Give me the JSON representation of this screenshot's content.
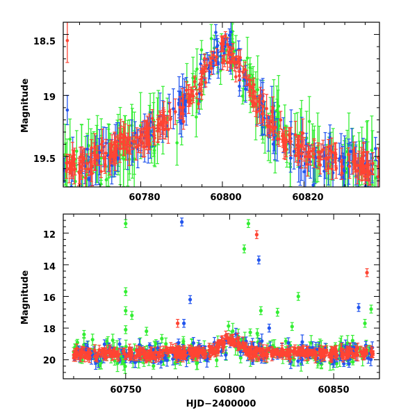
{
  "colors": {
    "green": "#33ee33",
    "blue": "#2255ee",
    "red": "#ff4433",
    "axis": "#000000",
    "model_line": "#000000"
  },
  "chart_data": [
    {
      "type": "scatter",
      "title": "",
      "xlabel": "",
      "ylabel": "Magnitude",
      "xlim": [
        60761,
        60838.5
      ],
      "ylim": [
        19.75,
        18.4
      ],
      "y_inverted": true,
      "x_ticks": [
        60780,
        60800,
        60820
      ],
      "x_tick_labels": [
        "60780",
        "60800",
        "60820"
      ],
      "y_ticks": [
        18.5,
        19,
        19.5
      ],
      "y_tick_labels": [
        "18.5",
        "19",
        "19.5"
      ],
      "grid": false,
      "legend": "none",
      "model_curve": {
        "style": "dashed",
        "x": [
          60761,
          60770,
          60780,
          60786,
          60790,
          60794,
          60797,
          60799,
          60800.5,
          60802,
          60804,
          60807,
          60811,
          60815,
          60820,
          60830,
          60838.5
        ],
        "y": [
          19.6,
          19.52,
          19.35,
          19.22,
          19.1,
          18.92,
          18.74,
          18.65,
          18.62,
          18.66,
          18.76,
          18.95,
          19.18,
          19.35,
          19.47,
          19.55,
          19.58
        ]
      },
      "series": [
        {
          "color": "green",
          "marker": "dot-errorbar",
          "n_points": 170,
          "typical_error": 0.17
        },
        {
          "color": "blue",
          "marker": "dot-errorbar",
          "n_points": 160,
          "typical_error": 0.12
        },
        {
          "color": "red",
          "marker": "dot-errorbar",
          "n_points": 320,
          "typical_error": 0.07
        }
      ],
      "notable_points": [
        {
          "series": "red",
          "x": 60762,
          "y": 18.55,
          "err": 0.18
        },
        {
          "series": "blue",
          "x": 60762,
          "y": 19.12,
          "err": 0.12
        }
      ]
    },
    {
      "type": "scatter",
      "title": "",
      "xlabel": "HJD−2400000",
      "ylabel": "Magnitude",
      "xlim": [
        60720,
        60872
      ],
      "ylim": [
        21.2,
        10.8
      ],
      "y_inverted": true,
      "x_ticks": [
        60750,
        60800,
        60850
      ],
      "x_tick_labels": [
        "60750",
        "60800",
        "60850"
      ],
      "y_ticks": [
        12,
        14,
        16,
        18,
        20
      ],
      "y_tick_labels": [
        "12",
        "14",
        "16",
        "18",
        "20"
      ],
      "grid": false,
      "legend": "none",
      "series": [
        {
          "color": "green",
          "marker": "dot-errorbar",
          "n_points": 220,
          "typical_error": 0.35
        },
        {
          "color": "blue",
          "marker": "dot-errorbar",
          "n_points": 200,
          "typical_error": 0.3
        },
        {
          "color": "red",
          "marker": "dot-errorbar",
          "n_points": 420,
          "typical_error": 0.25
        }
      ],
      "outliers": [
        {
          "series": "green",
          "x": 60750,
          "y": 11.4
        },
        {
          "series": "green",
          "x": 60750,
          "y": 15.7
        },
        {
          "series": "green",
          "x": 60750,
          "y": 16.9
        },
        {
          "series": "green",
          "x": 60753,
          "y": 17.2
        },
        {
          "series": "green",
          "x": 60750,
          "y": 18.1
        },
        {
          "series": "blue",
          "x": 60777,
          "y": 11.3
        },
        {
          "series": "blue",
          "x": 60781,
          "y": 16.2
        },
        {
          "series": "blue",
          "x": 60778,
          "y": 17.7
        },
        {
          "series": "green",
          "x": 60809,
          "y": 11.4
        },
        {
          "series": "green",
          "x": 60807,
          "y": 13.0
        },
        {
          "series": "red",
          "x": 60813,
          "y": 12.1
        },
        {
          "series": "blue",
          "x": 60814,
          "y": 13.7
        },
        {
          "series": "green",
          "x": 60815,
          "y": 16.9
        },
        {
          "series": "green",
          "x": 60823,
          "y": 17.0
        },
        {
          "series": "green",
          "x": 60833,
          "y": 16.0
        },
        {
          "series": "green",
          "x": 60830,
          "y": 17.9
        },
        {
          "series": "blue",
          "x": 60819,
          "y": 18.0
        },
        {
          "series": "red",
          "x": 60775,
          "y": 17.7
        },
        {
          "series": "red",
          "x": 60866,
          "y": 14.5
        },
        {
          "series": "blue",
          "x": 60862,
          "y": 16.7
        },
        {
          "series": "green",
          "x": 60868,
          "y": 16.8
        },
        {
          "series": "green",
          "x": 60865,
          "y": 17.7
        },
        {
          "series": "green",
          "x": 60730,
          "y": 18.4
        },
        {
          "series": "green",
          "x": 60760,
          "y": 18.2
        }
      ]
    }
  ]
}
